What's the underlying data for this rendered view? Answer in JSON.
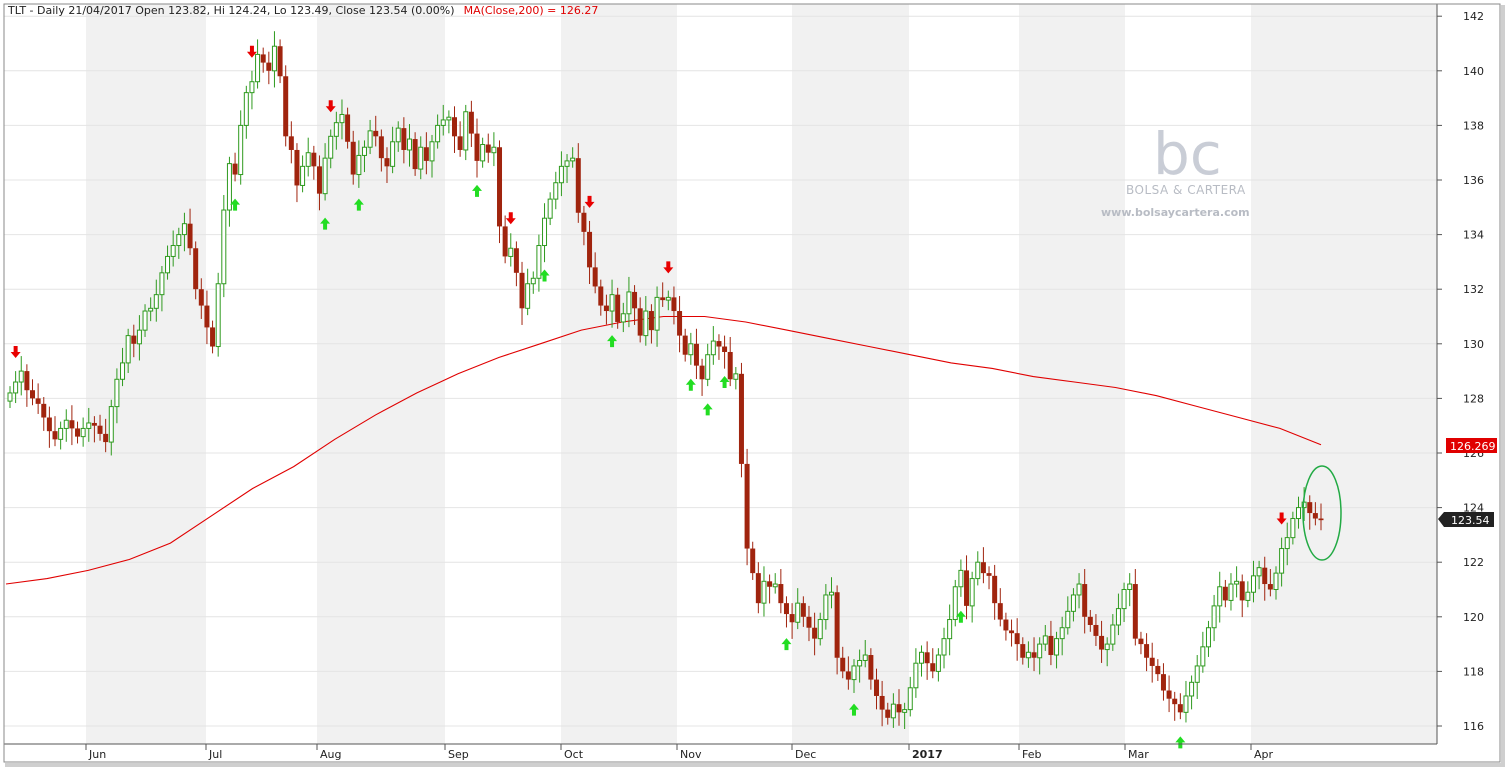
{
  "header": {
    "text": "TLT - Daily 21/04/2017 Open 123.82, Hi 124.24, Lo 123.49, Close 123.54 (0.00%)",
    "ma_text": "MA(Close,200) = 126.27"
  },
  "watermark": {
    "logo": "bc",
    "name": "BOLSA & CARTERA",
    "url": "www.bolsaycartera.com"
  },
  "labels": {
    "ma_value": "126.269",
    "last_value": "123.54"
  },
  "colors": {
    "up": "#2e9a1e",
    "down": "#a0240e",
    "ma": "#e00000",
    "arrow_up": "#22dd22",
    "arrow_down": "#e80000",
    "circle": "#22aa44",
    "band": "#f1f1f1",
    "grid": "#e4e4e4"
  },
  "chart_data": {
    "type": "candlestick",
    "title": "TLT - Daily",
    "ylim": [
      115,
      142.4
    ],
    "yticks": [
      116,
      118,
      120,
      122,
      124,
      126,
      128,
      130,
      132,
      134,
      136,
      138,
      140,
      142
    ],
    "months": [
      "Jun",
      "Jul",
      "Aug",
      "Sep",
      "Oct",
      "Nov",
      "Dec",
      "2017",
      "Feb",
      "Mar",
      "Apr"
    ],
    "last_close": 123.54,
    "ma200_last": 126.269,
    "closes": [
      128.2,
      128.6,
      129.0,
      128.3,
      128.0,
      127.8,
      127.3,
      126.8,
      126.5,
      126.9,
      127.2,
      126.9,
      126.6,
      126.9,
      127.1,
      127.0,
      126.7,
      126.4,
      127.7,
      128.7,
      129.3,
      130.3,
      130.0,
      130.5,
      131.2,
      131.3,
      131.8,
      132.6,
      133.2,
      133.6,
      134.0,
      134.4,
      133.5,
      132.0,
      131.4,
      130.6,
      129.9,
      132.2,
      134.9,
      136.6,
      136.2,
      138.0,
      139.2,
      139.6,
      140.6,
      140.3,
      140.0,
      140.9,
      139.8,
      137.6,
      137.1,
      135.8,
      136.5,
      137.0,
      136.5,
      135.5,
      136.8,
      137.6,
      138.1,
      138.4,
      137.4,
      136.2,
      136.9,
      137.2,
      137.8,
      137.6,
      136.8,
      136.5,
      137.4,
      137.9,
      137.1,
      137.5,
      136.4,
      137.2,
      136.7,
      137.4,
      138.0,
      138.2,
      138.3,
      137.6,
      137.1,
      138.5,
      137.7,
      136.7,
      137.3,
      137.0,
      137.2,
      134.3,
      133.2,
      133.5,
      132.6,
      131.3,
      132.2,
      132.4,
      133.6,
      134.6,
      135.3,
      135.9,
      136.5,
      136.7,
      136.8,
      134.8,
      134.1,
      132.8,
      132.1,
      131.4,
      131.2,
      131.8,
      130.8,
      131.1,
      131.9,
      131.3,
      130.3,
      131.2,
      130.5,
      131.7,
      131.6,
      131.7,
      131.2,
      130.3,
      129.6,
      130.0,
      129.2,
      128.7,
      129.6,
      130.1,
      129.9,
      129.7,
      128.7,
      128.9,
      125.6,
      122.5,
      121.6,
      120.5,
      121.3,
      121.1,
      121.2,
      120.5,
      120.1,
      119.8,
      120.5,
      120.0,
      119.6,
      119.2,
      119.9,
      120.8,
      120.9,
      118.5,
      118.0,
      117.7,
      118.2,
      118.4,
      118.6,
      117.7,
      117.1,
      116.6,
      116.3,
      116.8,
      116.5,
      116.6,
      117.4,
      118.3,
      118.7,
      118.3,
      118.0,
      118.6,
      119.2,
      119.9,
      121.1,
      121.7,
      120.4,
      121.4,
      122.0,
      121.6,
      121.5,
      120.5,
      119.9,
      119.5,
      119.4,
      119.0,
      118.5,
      118.7,
      118.5,
      119.0,
      119.3,
      118.6,
      119.2,
      119.6,
      120.2,
      120.8,
      121.2,
      120.0,
      119.7,
      119.3,
      118.8,
      119.0,
      119.7,
      120.3,
      121.0,
      121.2,
      119.2,
      119.0,
      118.5,
      118.2,
      117.9,
      117.3,
      117.0,
      116.8,
      116.5,
      117.1,
      117.6,
      118.2,
      118.9,
      119.6,
      120.4,
      121.1,
      120.6,
      121.2,
      121.3,
      120.6,
      120.9,
      121.5,
      121.8,
      121.2,
      121.0,
      121.6,
      122.5,
      122.9,
      123.6,
      124.0,
      124.2,
      123.8,
      123.6,
      123.54
    ],
    "ma200": [
      121.2,
      121.4,
      121.7,
      122.1,
      122.7,
      123.7,
      124.7,
      125.5,
      126.5,
      127.4,
      128.2,
      128.9,
      129.5,
      130.0,
      130.5,
      130.8,
      131.0,
      131.0,
      130.8,
      130.5,
      130.2,
      129.9,
      129.6,
      129.3,
      129.1,
      128.8,
      128.6,
      128.4,
      128.1,
      127.7,
      127.3,
      126.9,
      126.3
    ],
    "signals_up": [
      40,
      56,
      62,
      83,
      95,
      107,
      121,
      124,
      127,
      138,
      150,
      169,
      208,
      243,
      261
    ],
    "signals_down": [
      1,
      43,
      57,
      89,
      103,
      117,
      226,
      247,
      265,
      278
    ]
  }
}
